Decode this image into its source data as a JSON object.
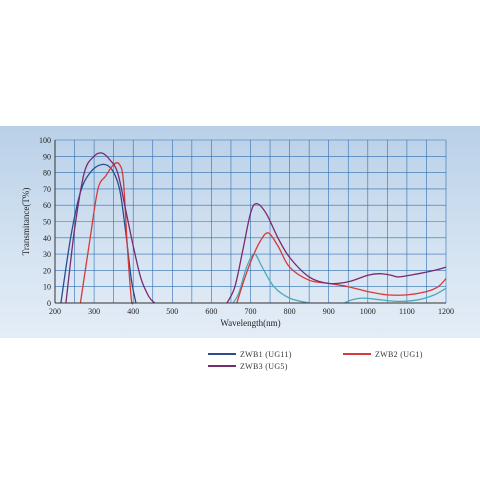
{
  "chart_data": {
    "type": "line",
    "xlabel": "Wavelength(nm)",
    "ylabel": "Transmitance(T%)",
    "xlim": [
      200,
      1200
    ],
    "ylim": [
      0,
      100
    ],
    "x_ticks": [
      200,
      300,
      400,
      500,
      600,
      700,
      800,
      900,
      1000,
      1100,
      1200
    ],
    "y_ticks": [
      0,
      10,
      20,
      30,
      40,
      50,
      60,
      70,
      80,
      90,
      100
    ],
    "grid": true,
    "legend_position": "below-right",
    "series": [
      {
        "name": "ZWB1 (UG11)",
        "color": "#2a4e8c",
        "legend_color": "#2a4e8c",
        "points": [
          [
            215,
            0
          ],
          [
            240,
            40
          ],
          [
            265,
            68
          ],
          [
            290,
            80
          ],
          [
            320,
            85
          ],
          [
            345,
            82
          ],
          [
            365,
            70
          ],
          [
            380,
            45
          ],
          [
            395,
            15
          ],
          [
            407,
            0
          ]
        ]
      },
      {
        "name": "ZWB1 (UG11)",
        "color": "#4aabb8",
        "legend_color": "#2a4e8c",
        "segment_of": "ZWB1 (UG11)",
        "points": [
          [
            655,
            0
          ],
          [
            670,
            6
          ],
          [
            690,
            22
          ],
          [
            710,
            30
          ],
          [
            730,
            22
          ],
          [
            760,
            10
          ],
          [
            800,
            3
          ],
          [
            850,
            0
          ]
        ]
      },
      {
        "name": "ZWB1 (UG11)",
        "color": "#4aabb8",
        "legend_color": "#2a4e8c",
        "segment_of": "ZWB1 (UG11)",
        "points": [
          [
            940,
            0
          ],
          [
            960,
            2
          ],
          [
            990,
            3
          ],
          [
            1030,
            2
          ],
          [
            1080,
            1
          ],
          [
            1130,
            2
          ],
          [
            1170,
            5
          ],
          [
            1200,
            9
          ]
        ]
      },
      {
        "name": "ZWB2 (UG1)",
        "color": "#d63a3a",
        "points": [
          [
            265,
            0
          ],
          [
            290,
            40
          ],
          [
            310,
            70
          ],
          [
            330,
            78
          ],
          [
            350,
            85
          ],
          [
            365,
            85
          ],
          [
            375,
            75
          ],
          [
            385,
            35
          ],
          [
            395,
            3
          ],
          [
            400,
            0
          ]
        ]
      },
      {
        "name": "ZWB2 (UG1)",
        "color": "#d63a3a",
        "segment_of": "ZWB2 (UG1)",
        "points": [
          [
            665,
            0
          ],
          [
            685,
            15
          ],
          [
            705,
            28
          ],
          [
            725,
            38
          ],
          [
            745,
            43
          ],
          [
            770,
            35
          ],
          [
            800,
            22
          ],
          [
            850,
            14
          ],
          [
            900,
            12
          ],
          [
            950,
            10
          ],
          [
            1000,
            7
          ],
          [
            1050,
            5
          ],
          [
            1100,
            5
          ],
          [
            1150,
            7
          ],
          [
            1180,
            10
          ],
          [
            1200,
            15
          ]
        ]
      },
      {
        "name": "ZWB3 (UG5)",
        "color": "#7a2a6e",
        "points": [
          [
            228,
            0
          ],
          [
            250,
            45
          ],
          [
            275,
            80
          ],
          [
            300,
            90
          ],
          [
            320,
            92
          ],
          [
            340,
            88
          ],
          [
            360,
            80
          ],
          [
            380,
            58
          ],
          [
            400,
            35
          ],
          [
            420,
            15
          ],
          [
            440,
            4
          ],
          [
            455,
            0
          ]
        ]
      },
      {
        "name": "ZWB3 (UG5)",
        "color": "#7a2a6e",
        "segment_of": "ZWB3 (UG5)",
        "points": [
          [
            640,
            0
          ],
          [
            660,
            10
          ],
          [
            680,
            32
          ],
          [
            700,
            55
          ],
          [
            715,
            61
          ],
          [
            740,
            55
          ],
          [
            770,
            40
          ],
          [
            800,
            28
          ],
          [
            850,
            16
          ],
          [
            900,
            12
          ],
          [
            950,
            13
          ],
          [
            1000,
            17
          ],
          [
            1030,
            18
          ],
          [
            1060,
            17
          ],
          [
            1080,
            16
          ],
          [
            1130,
            18
          ],
          [
            1170,
            20
          ],
          [
            1200,
            22
          ]
        ]
      }
    ],
    "legend": [
      {
        "name": "ZWB1 (UG11)",
        "color": "#2a4e8c"
      },
      {
        "name": "ZWB2 (UG1)",
        "color": "#d63a3a"
      },
      {
        "name": "ZWB3 (UG5)",
        "color": "#7a2a6e"
      }
    ]
  }
}
